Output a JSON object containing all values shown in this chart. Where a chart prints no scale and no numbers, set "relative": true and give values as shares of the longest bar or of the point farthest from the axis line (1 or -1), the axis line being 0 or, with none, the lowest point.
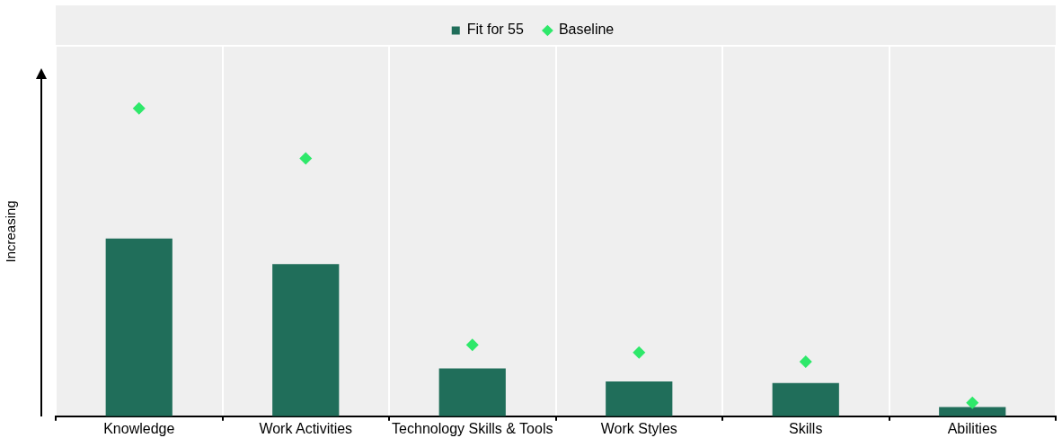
{
  "chart_data": {
    "type": "bar",
    "relative": true,
    "ylabel": "Increasing",
    "categories": [
      "Knowledge",
      "Work Activities",
      "Technology Skills & Tools",
      "Work Styles",
      "Skills",
      "Abilities"
    ],
    "series": [
      {
        "name": "Fit for 55",
        "type": "bar",
        "color": "#206e5a",
        "values": [
          0.577,
          0.494,
          0.155,
          0.113,
          0.108,
          0.03
        ]
      },
      {
        "name": "Baseline",
        "type": "scatter",
        "color": "#2ee86a",
        "x": [
          "Knowledge",
          "Work Activities",
          "Technology Skills & Tools",
          "Work Styles",
          "Skills",
          "Abilities"
        ],
        "values": [
          1,
          0.837,
          0.232,
          0.207,
          0.177,
          0.044
        ]
      }
    ],
    "marker": "diamond",
    "grid": "x",
    "legend": "top"
  }
}
